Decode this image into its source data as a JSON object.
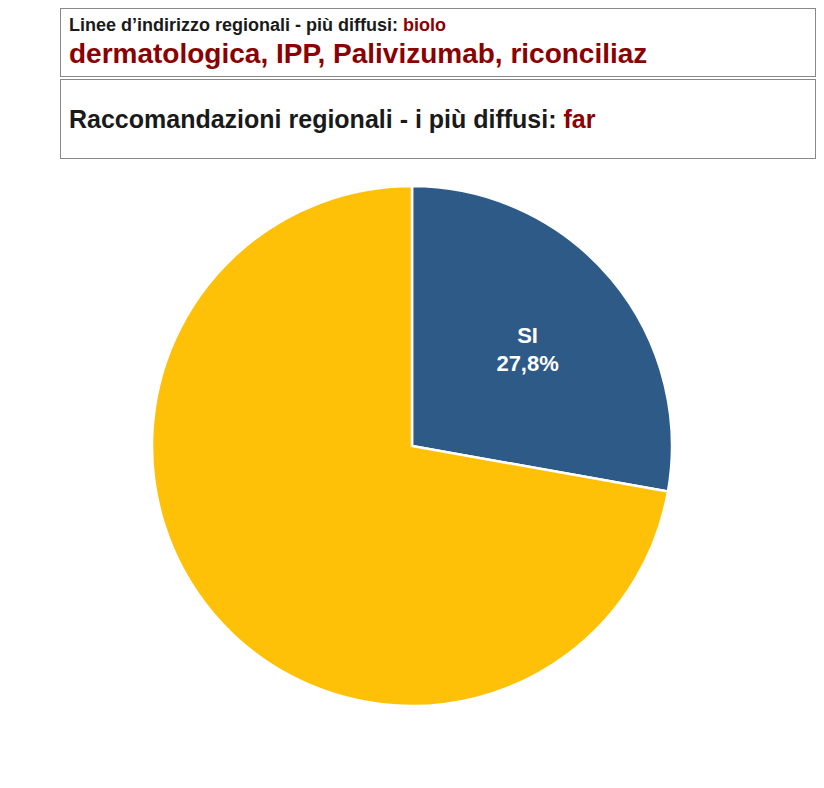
{
  "chart_data": {
    "type": "pie",
    "annotations": [
      [
        {
          "text": "Linee d’indirizzo regionali - più diffusi: ",
          "color": "#1a1a1a"
        },
        {
          "text": "biolo",
          "color": "#8B0000"
        }
      ],
      [
        {
          "text": "dermatologica, IPP, Palivizumab, riconciliaz",
          "color": "#8B0000"
        }
      ],
      [
        {
          "text": "Raccomandazioni regionali - i più diffusi: ",
          "color": "#1a1a1a"
        },
        {
          "text": "far",
          "color": "#8B0000"
        }
      ]
    ],
    "categories": [
      "SI",
      null
    ],
    "values": [
      27.8,
      72.2
    ],
    "value_labels": [
      "27,8%",
      null
    ],
    "colors": [
      "#2E5A87",
      "#FFC107"
    ],
    "data_labels": true
  }
}
